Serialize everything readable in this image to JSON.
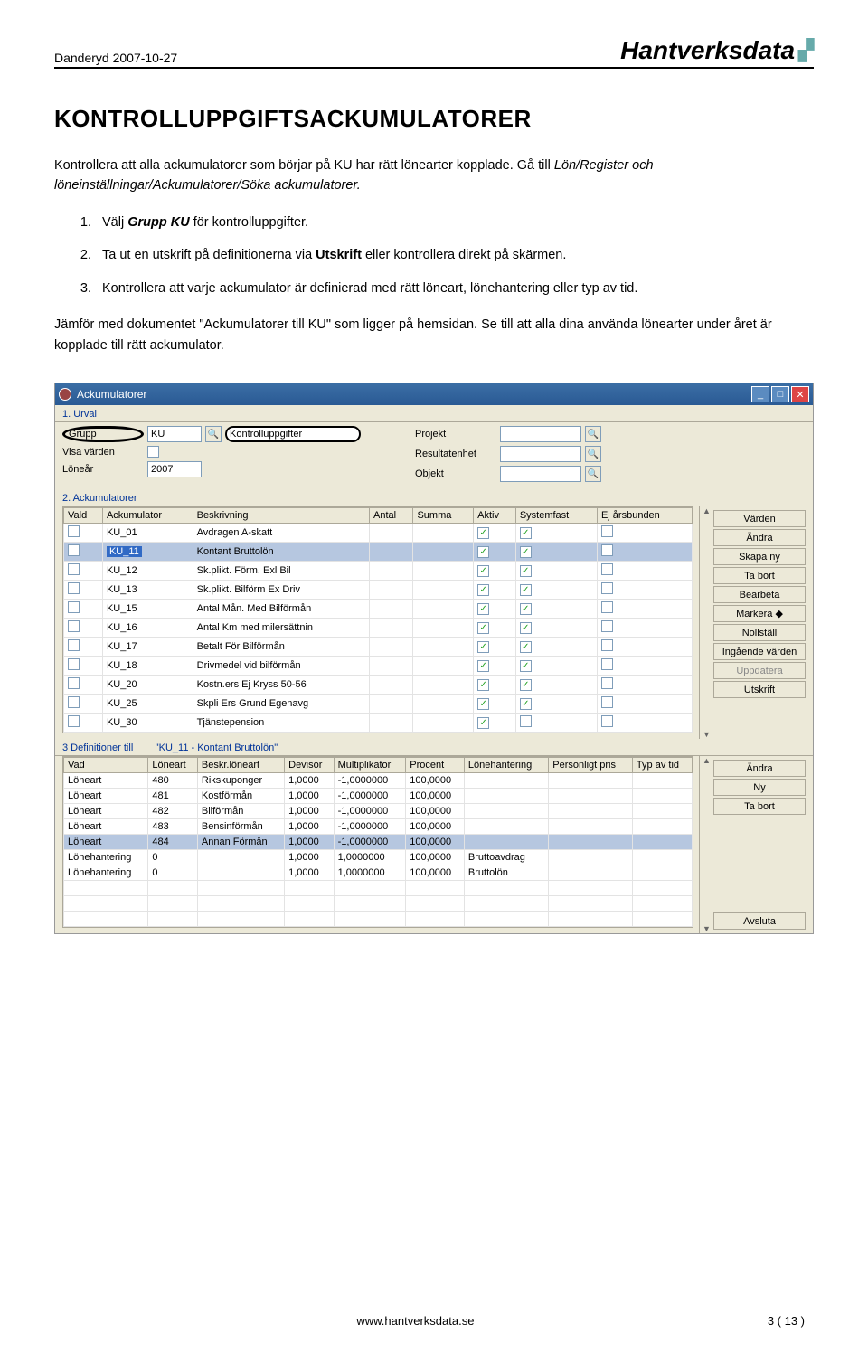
{
  "header": {
    "left": "Danderyd 2007-10-27",
    "brand": "Hantverksdata"
  },
  "title": "KONTROLLUPPGIFTSACKUMULATORER",
  "intro1_a": "Kontrollera att alla ackumulatorer som börjar på KU har rätt lönearter kopplade. Gå till ",
  "intro1_b": "Lön/Register och löneinställningar/Ackumulatorer/Söka ackumulatorer.",
  "steps": [
    {
      "pre": "Välj ",
      "boldItalic": "Grupp KU",
      "post": " för kontrolluppgifter."
    },
    {
      "pre": "Ta ut en utskrift på definitionerna via ",
      "bold": "Utskrift",
      "post": " eller kontrollera direkt på skärmen."
    },
    {
      "pre": "Kontrollera att varje ackumulator är definierad med rätt löneart, lönehantering eller typ av tid.",
      "boldItalic": "",
      "post": ""
    }
  ],
  "intro2": "Jämför med dokumentet \"Ackumulatorer till KU\" som ligger på hemsidan. Se till att alla dina använda lönearter under året är kopplade till rätt ackumulator.",
  "win": {
    "title": "Ackumulatorer",
    "sect1": "1. Urval",
    "labels": {
      "grupp": "Grupp",
      "visa": "Visa värden",
      "lonear": "Löneår",
      "kontroll": "Kontrolluppgifter",
      "projekt": "Projekt",
      "resultat": "Resultatenhet",
      "objekt": "Objekt"
    },
    "vals": {
      "grupp": "KU",
      "lonear": "2007"
    },
    "sect2": "2. Ackumulatorer",
    "cols2": [
      "Vald",
      "Ackumulator",
      "Beskrivning",
      "Antal",
      "Summa",
      "Aktiv",
      "Systemfast",
      "Ej årsbunden"
    ],
    "rows2": [
      {
        "ack": "KU_01",
        "besk": "Avdragen A-skatt",
        "aktiv": true,
        "sys": true,
        "ej": false,
        "sel": false
      },
      {
        "ack": "KU_11",
        "besk": "Kontant Bruttolön",
        "aktiv": true,
        "sys": true,
        "ej": false,
        "sel": true
      },
      {
        "ack": "KU_12",
        "besk": "Sk.plikt. Förm. Exl Bil",
        "aktiv": true,
        "sys": true,
        "ej": false
      },
      {
        "ack": "KU_13",
        "besk": "Sk.plikt. Bilförm Ex Driv",
        "aktiv": true,
        "sys": true,
        "ej": false
      },
      {
        "ack": "KU_15",
        "besk": "Antal Mån. Med Bilförmån",
        "aktiv": true,
        "sys": true,
        "ej": false
      },
      {
        "ack": "KU_16",
        "besk": "Antal Km med milersättnin",
        "aktiv": true,
        "sys": true,
        "ej": false
      },
      {
        "ack": "KU_17",
        "besk": "Betalt För Bilförmån",
        "aktiv": true,
        "sys": true,
        "ej": false
      },
      {
        "ack": "KU_18",
        "besk": "Drivmedel vid bilförmån",
        "aktiv": true,
        "sys": true,
        "ej": false
      },
      {
        "ack": "KU_20",
        "besk": "Kostn.ers Ej Kryss 50-56",
        "aktiv": true,
        "sys": true,
        "ej": false
      },
      {
        "ack": "KU_25",
        "besk": "Skpli Ers Grund Egenavg",
        "aktiv": true,
        "sys": true,
        "ej": false
      },
      {
        "ack": "KU_30",
        "besk": "Tjänstepension",
        "aktiv": true,
        "sys": false,
        "ej": false
      }
    ],
    "btns2": [
      "Värden",
      "Ändra",
      "Skapa ny",
      "Ta bort",
      "Bearbeta",
      "Markera   ◆",
      "Nollställ",
      "Ingående värden",
      "Uppdatera",
      "Utskrift"
    ],
    "sect3a": "3 Definitioner till",
    "sect3b": "\"KU_11 - Kontant Bruttolön\"",
    "cols3": [
      "Vad",
      "Löneart",
      "Beskr.löneart",
      "Devisor",
      "Multiplikator",
      "Procent",
      "Lönehantering",
      "Personligt pris",
      "Typ av tid"
    ],
    "rows3": [
      {
        "vad": "Löneart",
        "lon": "480",
        "besk": "Rikskuponger",
        "dev": "1,0000",
        "mul": "-1,0000000",
        "pro": "100,0000",
        "lh": "",
        "sel": false
      },
      {
        "vad": "Löneart",
        "lon": "481",
        "besk": "Kostförmån",
        "dev": "1,0000",
        "mul": "-1,0000000",
        "pro": "100,0000",
        "lh": ""
      },
      {
        "vad": "Löneart",
        "lon": "482",
        "besk": "Bilförmån",
        "dev": "1,0000",
        "mul": "-1,0000000",
        "pro": "100,0000",
        "lh": ""
      },
      {
        "vad": "Löneart",
        "lon": "483",
        "besk": "Bensinförmån",
        "dev": "1,0000",
        "mul": "-1,0000000",
        "pro": "100,0000",
        "lh": ""
      },
      {
        "vad": "Löneart",
        "lon": "484",
        "besk": "Annan Förmån",
        "dev": "1,0000",
        "mul": "-1,0000000",
        "pro": "100,0000",
        "lh": "",
        "sel": true
      },
      {
        "vad": "Lönehantering",
        "lon": "0",
        "besk": "",
        "dev": "1,0000",
        "mul": "1,0000000",
        "pro": "100,0000",
        "lh": "Bruttoavdrag"
      },
      {
        "vad": "Lönehantering",
        "lon": "0",
        "besk": "",
        "dev": "1,0000",
        "mul": "1,0000000",
        "pro": "100,0000",
        "lh": "Bruttolön"
      }
    ],
    "btns3": [
      "Ändra",
      "Ny",
      "Ta bort"
    ],
    "avsluta": "Avsluta"
  },
  "footer": {
    "url": "www.hantverksdata.se",
    "page": "3 ( 13 )"
  }
}
